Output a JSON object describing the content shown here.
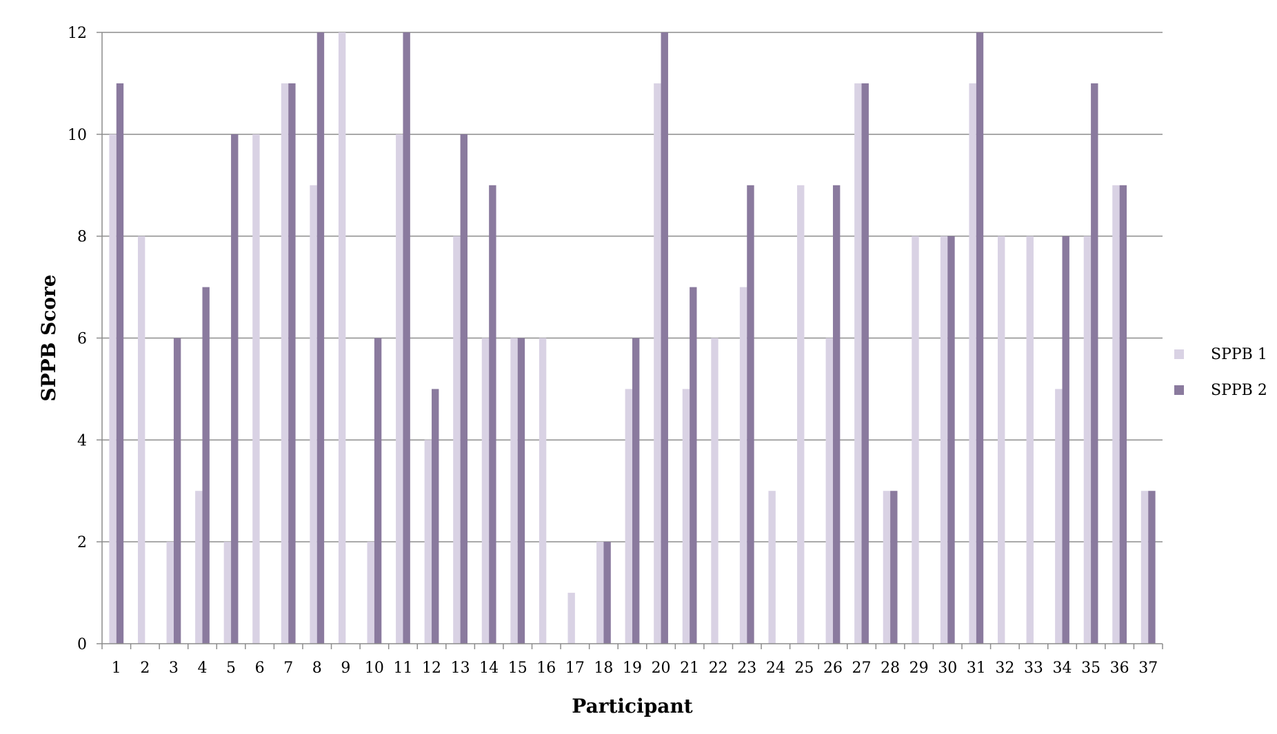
{
  "chart_data": {
    "type": "bar",
    "title": "",
    "xlabel": "Participant",
    "ylabel": "SPPB Score",
    "ylim": [
      0,
      12
    ],
    "yticks": [
      0,
      2,
      4,
      6,
      8,
      10,
      12
    ],
    "grid": true,
    "legend_position": "right",
    "categories": [
      "1",
      "2",
      "3",
      "4",
      "5",
      "6",
      "7",
      "8",
      "9",
      "10",
      "11",
      "12",
      "13",
      "14",
      "15",
      "16",
      "17",
      "18",
      "19",
      "20",
      "21",
      "22",
      "23",
      "24",
      "25",
      "26",
      "27",
      "28",
      "29",
      "30",
      "31",
      "32",
      "33",
      "34",
      "35",
      "36",
      "37"
    ],
    "series": [
      {
        "name": "SPPB 1",
        "color": "#d9d2e4",
        "values": [
          10,
          8,
          2,
          3,
          2,
          10,
          11,
          9,
          12,
          2,
          10,
          4,
          8,
          6,
          6,
          6,
          1,
          2,
          5,
          11,
          5,
          6,
          7,
          3,
          9,
          6,
          11,
          3,
          8,
          8,
          11,
          8,
          8,
          5,
          8,
          9,
          3
        ]
      },
      {
        "name": "SPPB 2",
        "color": "#8a7a9e",
        "values": [
          11,
          0,
          6,
          7,
          10,
          0,
          11,
          12,
          0,
          6,
          12,
          5,
          10,
          9,
          6,
          0,
          0,
          2,
          6,
          12,
          7,
          0,
          9,
          0,
          0,
          9,
          11,
          3,
          0,
          8,
          12,
          0,
          0,
          8,
          11,
          9,
          3
        ]
      }
    ]
  }
}
